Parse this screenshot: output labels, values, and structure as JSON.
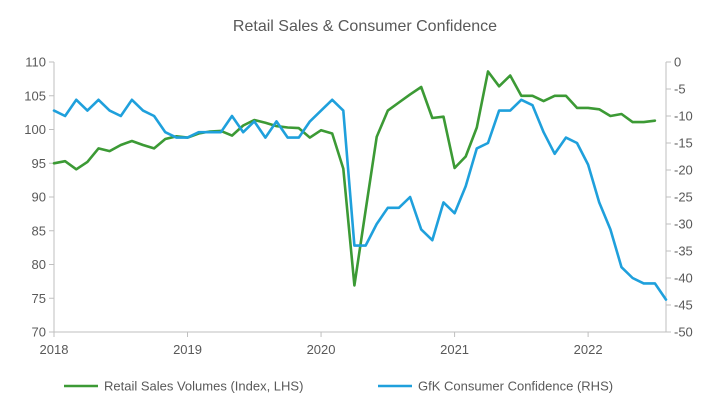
{
  "chart_data": {
    "type": "line",
    "title": "Retail Sales & Consumer Confidence",
    "xlabel": "",
    "ylabel_left": "",
    "ylabel_right": "",
    "x_tick_labels": [
      "2018",
      "2019",
      "2020",
      "2021",
      "2022"
    ],
    "x_range": [
      "2018-01",
      "2022-08"
    ],
    "y_left": {
      "min": 70,
      "max": 110,
      "step": 5,
      "ticks": [
        "70",
        "75",
        "80",
        "85",
        "90",
        "95",
        "100",
        "105",
        "110"
      ]
    },
    "y_right": {
      "min": -50,
      "max": 0,
      "step": 5,
      "ticks": [
        "-50",
        "-45",
        "-40",
        "-35",
        "-30",
        "-25",
        "-20",
        "-15",
        "-10",
        "-5",
        "0"
      ]
    },
    "grid": false,
    "legend_position": "bottom",
    "colors": {
      "retail": "#3c9a35",
      "gfk": "#1fa0dc",
      "axis": "#bfbfbf",
      "text": "#595959"
    },
    "series": [
      {
        "name": "Retail Sales Volumes (Index, LHS)",
        "axis": "left",
        "x": [
          "2018-01",
          "2018-02",
          "2018-03",
          "2018-04",
          "2018-05",
          "2018-06",
          "2018-07",
          "2018-08",
          "2018-09",
          "2018-10",
          "2018-11",
          "2018-12",
          "2019-01",
          "2019-02",
          "2019-03",
          "2019-04",
          "2019-05",
          "2019-06",
          "2019-07",
          "2019-08",
          "2019-09",
          "2019-10",
          "2019-11",
          "2019-12",
          "2020-01",
          "2020-02",
          "2020-03",
          "2020-04",
          "2020-05",
          "2020-06",
          "2020-07",
          "2020-08",
          "2020-09",
          "2020-10",
          "2020-11",
          "2020-12",
          "2021-01",
          "2021-02",
          "2021-03",
          "2021-04",
          "2021-05",
          "2021-06",
          "2021-07",
          "2021-08",
          "2021-09",
          "2021-10",
          "2021-11",
          "2021-12",
          "2022-01",
          "2022-02",
          "2022-03",
          "2022-04",
          "2022-05",
          "2022-06",
          "2022-07"
        ],
        "values": [
          95.0,
          95.3,
          94.1,
          95.2,
          97.2,
          96.8,
          97.7,
          98.3,
          97.7,
          97.2,
          98.6,
          99.0,
          98.8,
          99.4,
          99.7,
          99.8,
          99.1,
          100.6,
          101.4,
          101.0,
          100.5,
          100.3,
          100.2,
          98.8,
          99.9,
          99.4,
          94.2,
          76.9,
          88.0,
          98.9,
          102.8,
          104.0,
          105.2,
          106.3,
          101.7,
          101.9,
          94.3,
          96.0,
          100.3,
          108.6,
          106.4,
          108.0,
          105.0,
          105.0,
          104.2,
          105.0,
          105.0,
          103.2,
          103.2,
          103.0,
          102.0,
          102.3,
          101.1,
          101.1,
          101.3
        ]
      },
      {
        "name": "GfK Consumer Confidence (RHS)",
        "axis": "right",
        "x": [
          "2018-01",
          "2018-02",
          "2018-03",
          "2018-04",
          "2018-05",
          "2018-06",
          "2018-07",
          "2018-08",
          "2018-09",
          "2018-10",
          "2018-11",
          "2018-12",
          "2019-01",
          "2019-02",
          "2019-03",
          "2019-04",
          "2019-05",
          "2019-06",
          "2019-07",
          "2019-08",
          "2019-09",
          "2019-10",
          "2019-11",
          "2019-12",
          "2020-01",
          "2020-02",
          "2020-03",
          "2020-04",
          "2020-05",
          "2020-06",
          "2020-07",
          "2020-08",
          "2020-09",
          "2020-10",
          "2020-11",
          "2020-12",
          "2021-01",
          "2021-02",
          "2021-03",
          "2021-04",
          "2021-05",
          "2021-06",
          "2021-07",
          "2021-08",
          "2021-09",
          "2021-10",
          "2021-11",
          "2021-12",
          "2022-01",
          "2022-02",
          "2022-03",
          "2022-04",
          "2022-05",
          "2022-06",
          "2022-07",
          "2022-08"
        ],
        "values": [
          -9,
          -10,
          -7,
          -9,
          -7,
          -9,
          -10,
          -7,
          -9,
          -10,
          -13,
          -14,
          -14,
          -13,
          -13,
          -13,
          -10,
          -13,
          -11,
          -14,
          -11,
          -14,
          -14,
          -11,
          -9,
          -7,
          -9,
          -34,
          -34,
          -30,
          -27,
          -27,
          -25,
          -31,
          -33,
          -26,
          -28,
          -23,
          -16,
          -15,
          -9,
          -9,
          -7,
          -8,
          -13,
          -17,
          -14,
          -15,
          -19,
          -26,
          -31,
          -38,
          -40,
          -41,
          -41,
          -44
        ]
      }
    ]
  }
}
